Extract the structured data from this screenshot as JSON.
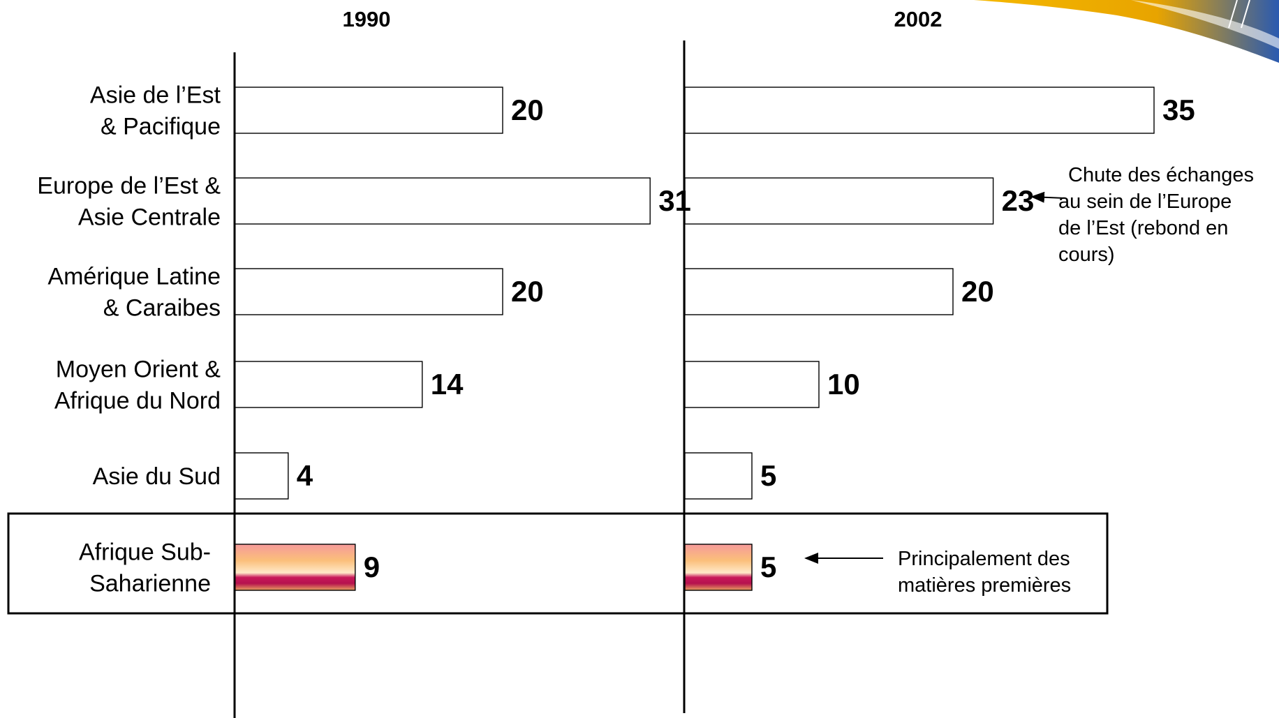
{
  "chart_data": {
    "type": "bar",
    "orientation": "horizontal",
    "panels": [
      "1990",
      "2002"
    ],
    "categories": [
      {
        "lines": [
          "Asie de l’Est",
          "& Pacifique"
        ]
      },
      {
        "lines": [
          "Europe de l’Est &",
          "Asie Centrale"
        ]
      },
      {
        "lines": [
          "Amérique Latine",
          "& Caraibes"
        ]
      },
      {
        "lines": [
          "Moyen Orient &",
          "Afrique du Nord"
        ]
      },
      {
        "lines": [
          "Asie du Sud"
        ]
      },
      {
        "lines": [
          "Afrique Sub-",
          "Saharienne"
        ]
      }
    ],
    "series": [
      {
        "values": [
          20,
          31,
          20,
          14,
          4,
          9
        ]
      },
      {
        "values": [
          35,
          23,
          20,
          10,
          5,
          5
        ]
      }
    ],
    "highlighted_category_index": 5,
    "colors": {
      "bar_fill": "#ffffff",
      "bar_stroke": "#000000",
      "highlight_gradient": [
        "#f59a9a",
        "#fbbf7a",
        "#ffe9c9",
        "#c8185a",
        "#b5124e",
        "#e8a060"
      ]
    },
    "annotations": [
      {
        "panel": 1,
        "category_index": 1,
        "lines": [
          "Chute des échanges",
          "au sein de l’Europe",
          "de l’Est (rebond en",
          "cours)"
        ]
      },
      {
        "panel": 1,
        "category_index": 5,
        "lines": [
          "Principalement des",
          "matières premières"
        ]
      }
    ],
    "legend": "none",
    "grid": false,
    "logo": "swoosh-logo"
  }
}
